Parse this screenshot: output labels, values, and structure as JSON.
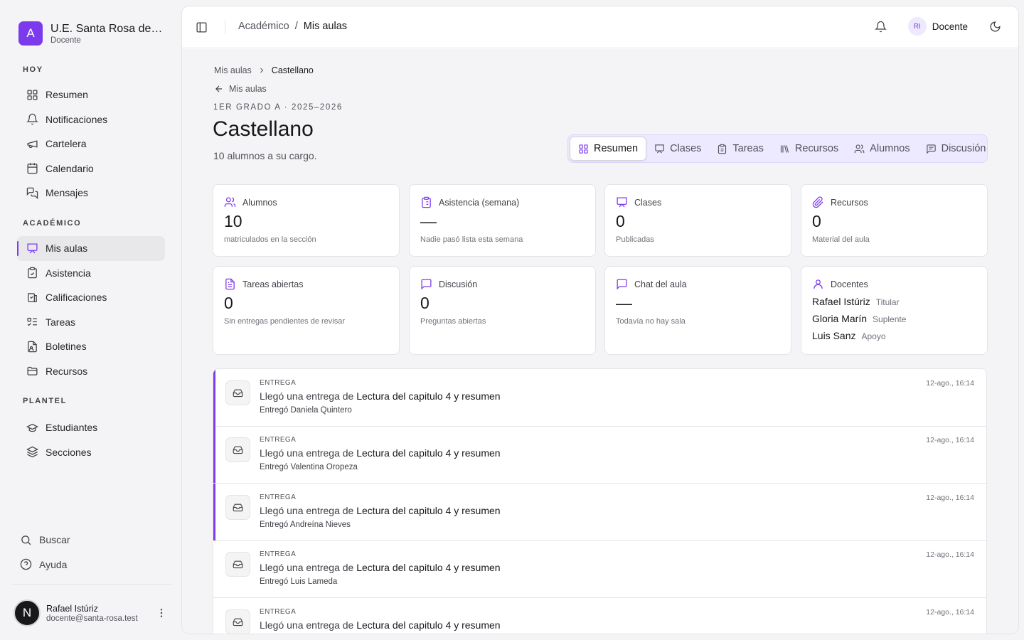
{
  "brand": {
    "initial": "A",
    "name": "U.E. Santa Rosa de Lima",
    "role": "Docente"
  },
  "sidebar": {
    "sections": [
      {
        "title": "HOY",
        "items": [
          {
            "label": "Resumen",
            "icon": "grid-icon"
          },
          {
            "label": "Notificaciones",
            "icon": "bell-icon"
          },
          {
            "label": "Cartelera",
            "icon": "megaphone-icon"
          },
          {
            "label": "Calendario",
            "icon": "calendar-icon"
          },
          {
            "label": "Mensajes",
            "icon": "messages-icon"
          }
        ]
      },
      {
        "title": "ACADÉMICO",
        "items": [
          {
            "label": "Mis aulas",
            "icon": "presentation-icon",
            "active": true
          },
          {
            "label": "Asistencia",
            "icon": "clipboard-check-icon"
          },
          {
            "label": "Calificaciones",
            "icon": "gradebook-icon"
          },
          {
            "label": "Tareas",
            "icon": "list-todo-icon"
          },
          {
            "label": "Boletines",
            "icon": "report-icon"
          },
          {
            "label": "Recursos",
            "icon": "folder-icon"
          }
        ]
      },
      {
        "title": "PLANTEL",
        "items": [
          {
            "label": "Estudiantes",
            "icon": "graduation-cap-icon"
          },
          {
            "label": "Secciones",
            "icon": "layers-icon"
          }
        ]
      }
    ],
    "bottom": [
      {
        "label": "Buscar",
        "icon": "search-icon"
      },
      {
        "label": "Ayuda",
        "icon": "help-circle-icon"
      }
    ],
    "user": {
      "initial": "N",
      "name": "Rafael Istúriz",
      "email": "docente@santa-rosa.test"
    }
  },
  "topbar": {
    "breadcrumb": [
      "Académico",
      "/",
      "Mis aulas"
    ],
    "avatar_initials": "RI",
    "role": "Docente"
  },
  "page": {
    "breadcrumb": [
      "Mis aulas",
      "Castellano"
    ],
    "back_label": "Mis aulas",
    "eyebrow": "1ER GRADO A · 2025–2026",
    "title": "Castellano",
    "subtitle": "10 alumnos a su cargo."
  },
  "tabs": [
    {
      "label": "Resumen",
      "icon": "grid-icon",
      "active": true
    },
    {
      "label": "Clases",
      "icon": "presentation-icon"
    },
    {
      "label": "Tareas",
      "icon": "clipboard-icon"
    },
    {
      "label": "Recursos",
      "icon": "library-icon"
    },
    {
      "label": "Alumnos",
      "icon": "users-icon"
    },
    {
      "label": "Discusión",
      "icon": "message-square-text-icon"
    }
  ],
  "stats": [
    {
      "label": "Alumnos",
      "value": "10",
      "note": "matriculados en la sección",
      "icon": "users-icon"
    },
    {
      "label": "Asistencia (semana)",
      "value": "—",
      "note": "Nadie pasó lista esta semana",
      "icon": "clipboard-list-icon"
    },
    {
      "label": "Clases",
      "value": "0",
      "note": "Publicadas",
      "icon": "presentation-icon"
    },
    {
      "label": "Recursos",
      "value": "0",
      "note": "Material del aula",
      "icon": "paperclip-icon"
    },
    {
      "label": "Tareas abiertas",
      "value": "0",
      "note": "Sin entregas pendientes de revisar",
      "icon": "file-text-icon"
    },
    {
      "label": "Discusión",
      "value": "0",
      "note": "Preguntas abiertas",
      "icon": "message-square-icon"
    },
    {
      "label": "Chat del aula",
      "value": "—",
      "note": "Todavía no hay sala",
      "icon": "message-square-icon"
    }
  ],
  "teachers_card": {
    "label": "Docentes",
    "icon": "user-icon",
    "teachers": [
      {
        "name": "Rafael Istúriz",
        "role": "Titular"
      },
      {
        "name": "Gloria Marín",
        "role": "Suplente"
      },
      {
        "name": "Luis Sanz",
        "role": "Apoyo"
      }
    ]
  },
  "feed": [
    {
      "kind": "ENTREGA",
      "prefix": "Llegó una entrega de",
      "task": "Lectura del capitulo 4 y resumen",
      "by": "Entregó Daniela Quintero",
      "time": "12-ago., 16:14",
      "unread": true
    },
    {
      "kind": "ENTREGA",
      "prefix": "Llegó una entrega de",
      "task": "Lectura del capitulo 4 y resumen",
      "by": "Entregó Valentina Oropeza",
      "time": "12-ago., 16:14",
      "unread": true
    },
    {
      "kind": "ENTREGA",
      "prefix": "Llegó una entrega de",
      "task": "Lectura del capitulo 4 y resumen",
      "by": "Entregó Andreína Nieves",
      "time": "12-ago., 16:14",
      "unread": true
    },
    {
      "kind": "ENTREGA",
      "prefix": "Llegó una entrega de",
      "task": "Lectura del capitulo 4 y resumen",
      "by": "Entregó Luis Lameda",
      "time": "12-ago., 16:14",
      "unread": false
    },
    {
      "kind": "ENTREGA",
      "prefix": "Llegó una entrega de",
      "task": "Lectura del capitulo 4 y resumen",
      "by": "",
      "time": "12-ago., 16:14",
      "unread": false
    }
  ],
  "colors": {
    "accent": "#7c3aed",
    "accent_soft": "#ede9fe",
    "background": "#f4f4f6",
    "text": "#18181b"
  }
}
